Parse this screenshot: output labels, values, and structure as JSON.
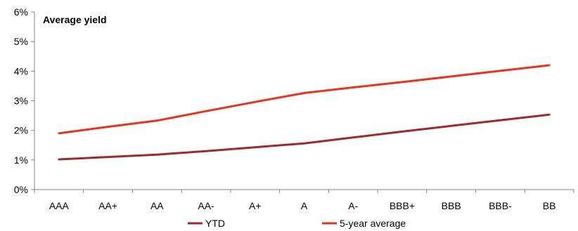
{
  "chart_data": {
    "type": "line",
    "title": "Average yield",
    "categories": [
      "AAA",
      "AA+",
      "AA",
      "AA-",
      "A+",
      "A",
      "A-",
      "BBB+",
      "BBB",
      "BBB-",
      "BB"
    ],
    "y_ticks": [
      "0%",
      "1%",
      "2%",
      "3%",
      "4%",
      "5%",
      "6%"
    ],
    "ylim": [
      0,
      6
    ],
    "y_unit": "%",
    "grid": false,
    "legend_position": "bottom",
    "series": [
      {
        "name": "YTD",
        "color": "#9e2a2b",
        "values": [
          1.02,
          1.1,
          1.18,
          1.3,
          1.43,
          1.56,
          1.76,
          1.96,
          2.15,
          2.34,
          2.53
        ]
      },
      {
        "name": "5-year average",
        "color": "#e8341c",
        "values": [
          1.9,
          2.12,
          2.33,
          2.65,
          2.96,
          3.26,
          3.45,
          3.63,
          3.82,
          4.01,
          4.2
        ]
      }
    ]
  }
}
